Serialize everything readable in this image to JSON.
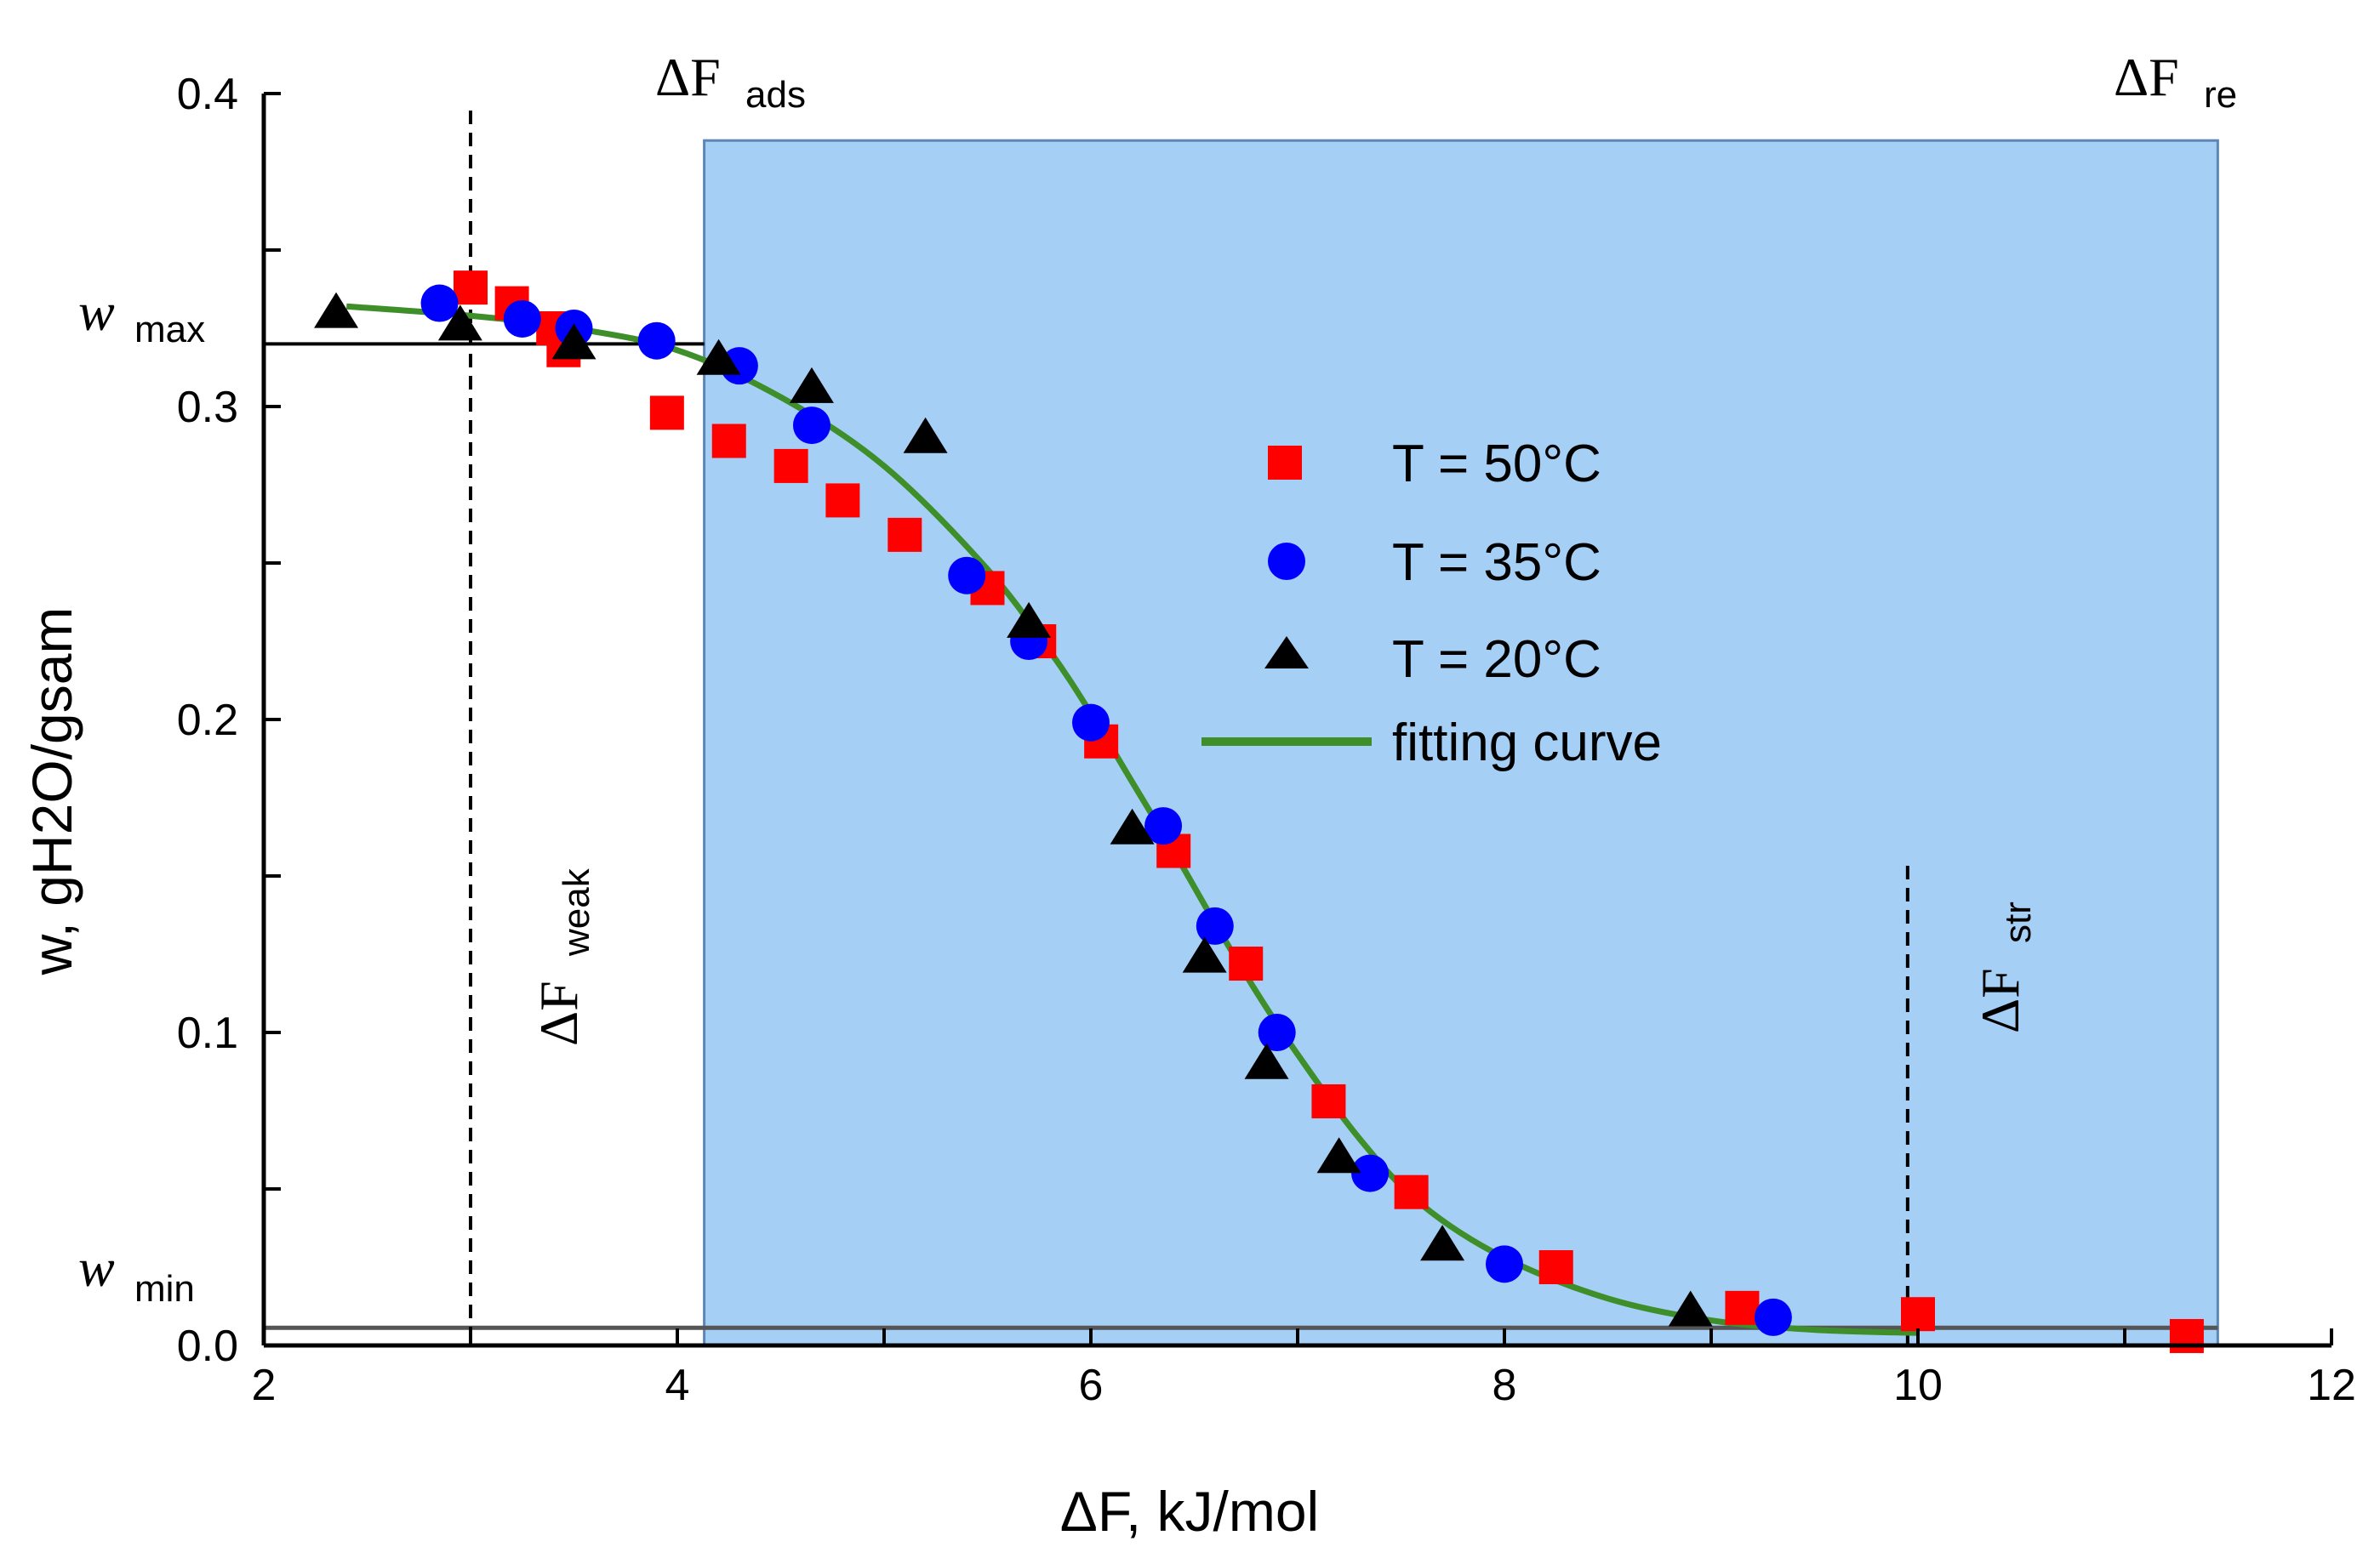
{
  "chart_data": {
    "type": "scatter",
    "title": "",
    "xlabel": "ΔF, kJ/mol",
    "ylabel": "w, gH2O/gsam",
    "xlim": [
      2,
      12
    ],
    "ylim": [
      0,
      0.4
    ],
    "x_ticks": [
      "2",
      "4",
      "6",
      "8",
      "10",
      "12"
    ],
    "y_ticks": [
      "0.0",
      "0.1",
      "0.2",
      "0.3",
      "0.4"
    ],
    "shaded_region": {
      "x_start": 4.13,
      "x_end": 11.45,
      "y_top": 0.385,
      "color": "#a6cff6"
    },
    "reference_lines": {
      "w_max": 0.32,
      "w_min": 0.004,
      "delta_f_weak": 3.0,
      "delta_f_str": 9.95
    },
    "annotations": {
      "w_max_label": "w",
      "w_max_sub": "max",
      "w_min_label": "w",
      "w_min_sub": "min",
      "f_ads_label": "ΔF",
      "f_ads_sub": "ads",
      "f_re_label": "ΔF",
      "f_re_sub": "re",
      "f_weak_label": "ΔF",
      "f_weak_sub": "weak",
      "f_str_label": "ΔF",
      "f_str_sub": "str"
    },
    "series": [
      {
        "name": "T = 50°C",
        "marker": "square",
        "color": "#ff0000",
        "x": [
          3.0,
          3.2,
          3.4,
          3.45,
          3.95,
          4.25,
          4.55,
          4.8,
          5.1,
          5.5,
          5.75,
          6.05,
          6.4,
          6.75,
          7.15,
          7.55,
          8.25,
          9.15,
          10.0,
          11.3
        ],
        "y": [
          0.338,
          0.333,
          0.325,
          0.318,
          0.298,
          0.289,
          0.281,
          0.27,
          0.259,
          0.242,
          0.225,
          0.193,
          0.158,
          0.122,
          0.078,
          0.049,
          0.025,
          0.012,
          0.01,
          0.003
        ]
      },
      {
        "name": "T = 35°C",
        "marker": "circle",
        "color": "#0000ff",
        "x": [
          2.85,
          3.25,
          3.5,
          3.9,
          4.3,
          4.65,
          5.4,
          5.7,
          6.0,
          6.35,
          6.6,
          6.9,
          7.35,
          8.0,
          9.3
        ],
        "y": [
          0.333,
          0.328,
          0.325,
          0.321,
          0.313,
          0.294,
          0.246,
          0.225,
          0.199,
          0.166,
          0.134,
          0.1,
          0.055,
          0.026,
          0.009
        ]
      },
      {
        "name": "T = 20°C",
        "marker": "triangle",
        "color": "#000000",
        "x": [
          2.35,
          2.95,
          3.5,
          4.2,
          4.65,
          5.2,
          5.7,
          6.2,
          6.55,
          6.85,
          7.2,
          7.7,
          8.9
        ],
        "y": [
          0.33,
          0.326,
          0.32,
          0.315,
          0.306,
          0.29,
          0.231,
          0.165,
          0.124,
          0.09,
          0.06,
          0.032,
          0.011
        ]
      }
    ],
    "fit_curve": {
      "name": "fitting curve",
      "color": "#3e8e2a",
      "x": [
        2.4,
        3.0,
        3.5,
        4.0,
        4.5,
        5.0,
        5.5,
        5.8,
        6.0,
        6.2,
        6.4,
        6.6,
        6.8,
        7.0,
        7.3,
        7.6,
        8.0,
        8.5,
        9.0,
        9.5,
        10.0
      ],
      "y": [
        0.332,
        0.329,
        0.325,
        0.318,
        0.303,
        0.281,
        0.248,
        0.222,
        0.202,
        0.18,
        0.158,
        0.135,
        0.113,
        0.093,
        0.066,
        0.045,
        0.028,
        0.015,
        0.008,
        0.005,
        0.004
      ]
    },
    "legend": {
      "placement": "center-right",
      "entries": [
        "T = 50°C",
        "T = 35°C",
        "T = 20°C",
        "fitting curve"
      ]
    }
  }
}
